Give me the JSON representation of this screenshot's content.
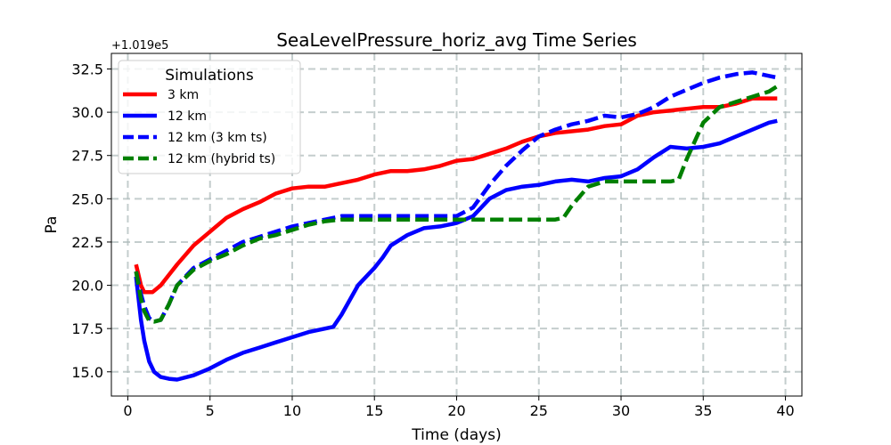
{
  "chart_data": {
    "type": "line",
    "title": "SeaLevelPressure_horiz_avg Time Series",
    "xlabel": "Time (days)",
    "ylabel": "Pa",
    "y_offset_label": "+1.019e5",
    "xlim": [
      -1,
      41
    ],
    "ylim": [
      13.6,
      33.4
    ],
    "xticks": [
      0,
      5,
      10,
      15,
      20,
      25,
      30,
      35,
      40
    ],
    "yticks": [
      15.0,
      17.5,
      20.0,
      22.5,
      25.0,
      27.5,
      30.0,
      32.5
    ],
    "xtick_labels": [
      "0",
      "5",
      "10",
      "15",
      "20",
      "25",
      "30",
      "35",
      "40"
    ],
    "ytick_labels": [
      "15.0",
      "17.5",
      "20.0",
      "22.5",
      "25.0",
      "27.5",
      "30.0",
      "32.5"
    ],
    "grid": true,
    "legend": {
      "title": "Simulations",
      "position": "top-left"
    },
    "series": [
      {
        "name": "3 km",
        "color": "#ff0000",
        "style": "solid",
        "x": [
          0.5,
          0.8,
          1.0,
          1.5,
          2.0,
          2.5,
          3.0,
          4.0,
          5.0,
          6.0,
          7.0,
          8.0,
          9.0,
          10.0,
          11.0,
          12.0,
          13.0,
          14.0,
          15.0,
          16.0,
          17.0,
          18.0,
          19.0,
          20.0,
          21.0,
          22.0,
          23.0,
          24.0,
          25.0,
          26.0,
          27.0,
          28.0,
          29.0,
          30.0,
          31.0,
          32.0,
          33.0,
          34.0,
          35.0,
          36.0,
          37.0,
          38.0,
          39.0,
          39.5
        ],
        "values": [
          21.2,
          20.0,
          19.6,
          19.6,
          20.0,
          20.6,
          21.2,
          22.3,
          23.1,
          23.9,
          24.4,
          24.8,
          25.3,
          25.6,
          25.7,
          25.7,
          25.9,
          26.1,
          26.4,
          26.6,
          26.6,
          26.7,
          26.9,
          27.2,
          27.3,
          27.6,
          27.9,
          28.3,
          28.6,
          28.8,
          28.9,
          29.0,
          29.2,
          29.3,
          29.8,
          30.0,
          30.1,
          30.2,
          30.3,
          30.3,
          30.5,
          30.8,
          30.8,
          30.8
        ]
      },
      {
        "name": "12 km",
        "color": "#0000ff",
        "style": "solid",
        "x": [
          0.5,
          0.8,
          1.0,
          1.3,
          1.6,
          2.0,
          2.5,
          3.0,
          4.0,
          5.0,
          6.0,
          7.0,
          8.0,
          9.0,
          10.0,
          11.0,
          12.0,
          12.5,
          13.0,
          14.0,
          15.0,
          15.5,
          16.0,
          17.0,
          18.0,
          19.0,
          20.0,
          21.0,
          22.0,
          23.0,
          24.0,
          25.0,
          26.0,
          27.0,
          28.0,
          29.0,
          30.0,
          31.0,
          32.0,
          33.0,
          34.0,
          35.0,
          36.0,
          37.0,
          38.0,
          39.0,
          39.5
        ],
        "values": [
          20.5,
          18.0,
          16.8,
          15.6,
          15.0,
          14.7,
          14.6,
          14.55,
          14.8,
          15.2,
          15.7,
          16.1,
          16.4,
          16.7,
          17.0,
          17.3,
          17.5,
          17.6,
          18.3,
          20.0,
          21.0,
          21.6,
          22.3,
          22.9,
          23.3,
          23.4,
          23.6,
          24.0,
          25.0,
          25.5,
          25.7,
          25.8,
          26.0,
          26.1,
          26.0,
          26.2,
          26.3,
          26.7,
          27.4,
          28.0,
          27.9,
          28.0,
          28.2,
          28.6,
          29.0,
          29.4,
          29.5
        ]
      },
      {
        "name": "12 km (3 km ts)",
        "color": "#0000ff",
        "style": "dashed",
        "x": [
          0.5,
          0.8,
          1.0,
          1.3,
          1.6,
          2.0,
          2.5,
          3.0,
          4.0,
          5.0,
          6.0,
          7.0,
          8.0,
          9.0,
          10.0,
          11.0,
          12.0,
          13.0,
          14.0,
          15.0,
          16.0,
          17.0,
          18.0,
          19.0,
          20.0,
          21.0,
          22.0,
          23.0,
          24.0,
          25.0,
          26.0,
          27.0,
          28.0,
          29.0,
          30.0,
          31.0,
          32.0,
          33.0,
          34.0,
          35.0,
          36.0,
          37.0,
          38.0,
          39.0,
          39.5
        ],
        "values": [
          20.8,
          19.5,
          18.8,
          18.1,
          17.9,
          18.0,
          18.9,
          20.0,
          21.0,
          21.5,
          22.0,
          22.5,
          22.8,
          23.1,
          23.4,
          23.6,
          23.8,
          24.0,
          24.0,
          24.0,
          24.0,
          24.0,
          24.0,
          24.0,
          24.0,
          24.5,
          25.8,
          26.9,
          27.8,
          28.6,
          29.0,
          29.3,
          29.5,
          29.8,
          29.7,
          29.9,
          30.3,
          30.9,
          31.3,
          31.7,
          32.0,
          32.2,
          32.3,
          32.1,
          32.0
        ]
      },
      {
        "name": "12 km (hybrid ts)",
        "color": "#008000",
        "style": "dashed",
        "x": [
          0.5,
          0.8,
          1.0,
          1.3,
          1.6,
          2.0,
          2.5,
          3.0,
          4.0,
          5.0,
          6.0,
          7.0,
          8.0,
          9.0,
          10.0,
          11.0,
          12.0,
          13.0,
          14.0,
          15.0,
          16.0,
          17.0,
          18.0,
          19.0,
          20.0,
          21.0,
          22.0,
          23.0,
          24.0,
          25.0,
          26.0,
          26.5,
          27.0,
          28.0,
          29.0,
          30.0,
          31.0,
          32.0,
          33.0,
          33.5,
          34.0,
          35.0,
          36.0,
          37.0,
          38.0,
          39.0,
          39.5
        ],
        "values": [
          20.8,
          19.2,
          18.5,
          17.95,
          17.9,
          18.0,
          18.9,
          20.0,
          20.9,
          21.4,
          21.8,
          22.3,
          22.7,
          22.9,
          23.2,
          23.5,
          23.7,
          23.8,
          23.8,
          23.8,
          23.8,
          23.8,
          23.8,
          23.8,
          23.8,
          23.8,
          23.8,
          23.8,
          23.8,
          23.8,
          23.8,
          23.9,
          24.6,
          25.7,
          26.0,
          26.0,
          26.0,
          26.0,
          26.0,
          26.1,
          27.3,
          29.4,
          30.3,
          30.6,
          30.9,
          31.2,
          31.5
        ]
      }
    ]
  }
}
